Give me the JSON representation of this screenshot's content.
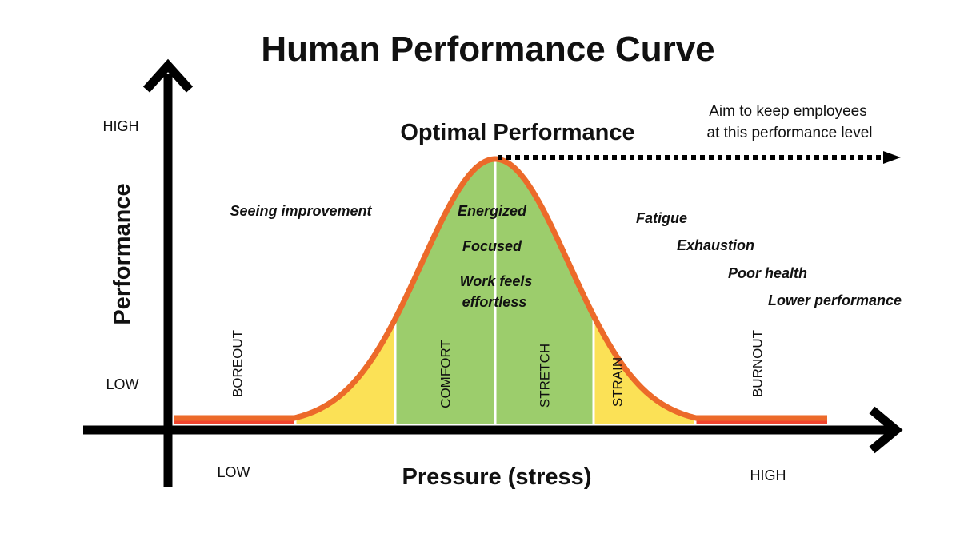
{
  "title": "Human Performance Curve",
  "peak_label": "Optimal Performance",
  "aim_note": [
    "Aim to keep employees",
    "at this performance level"
  ],
  "y_axis": {
    "label": "Performance",
    "high": "HIGH",
    "low": "LOW"
  },
  "x_axis": {
    "label": "Pressure (stress)",
    "low": "LOW",
    "high": "HIGH"
  },
  "zones": [
    {
      "label": "BOREOUT",
      "color": "#f0442e"
    },
    {
      "label": "",
      "color": "#fbe156"
    },
    {
      "label": "COMFORT",
      "color": "#9ccd6c"
    },
    {
      "label": "STRETCH",
      "color": "#9ccd6c"
    },
    {
      "label": "STRAIN",
      "color": "#fbe156"
    },
    {
      "label": "BURNOUT",
      "color": "#f0442e"
    }
  ],
  "left_notes": [
    "Seeing improvement"
  ],
  "center_notes": [
    "Energized",
    "Focused",
    "Work feels",
    "effortless"
  ],
  "right_notes": [
    "Fatigue",
    "Exhaustion",
    "Poor health",
    "Lower performance"
  ],
  "colors": {
    "curve": "#ec6a2a",
    "axis": "#000000",
    "divider": "#ffffff"
  }
}
